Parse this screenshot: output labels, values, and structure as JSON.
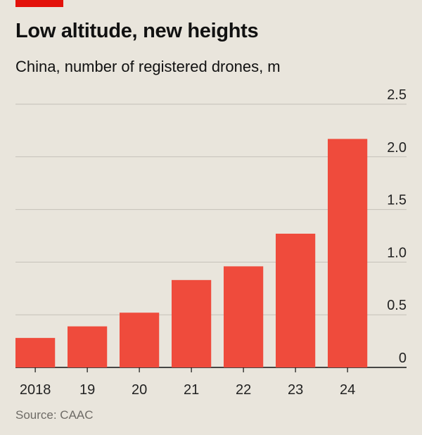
{
  "header": {
    "title": "Low altitude, new heights",
    "subtitle": "China, number of registered drones, m"
  },
  "footer": {
    "source": "Source: CAAC"
  },
  "colors": {
    "bar": "#ef4b3c",
    "accent": "#e3120b",
    "grid": "#c4c0b8",
    "axis": "#111111"
  },
  "chart_data": {
    "type": "bar",
    "title": "Low altitude, new heights",
    "subtitle": "China, number of registered drones, m",
    "categories": [
      "2018",
      "19",
      "20",
      "21",
      "22",
      "23",
      "24"
    ],
    "values": [
      0.28,
      0.39,
      0.52,
      0.83,
      0.96,
      1.27,
      2.17
    ],
    "yticks": [
      "0",
      "0.5",
      "1.0",
      "1.5",
      "2.0",
      "2.5"
    ],
    "ylim": [
      0,
      2.5
    ],
    "grid": true,
    "y_axis_side": "right"
  }
}
